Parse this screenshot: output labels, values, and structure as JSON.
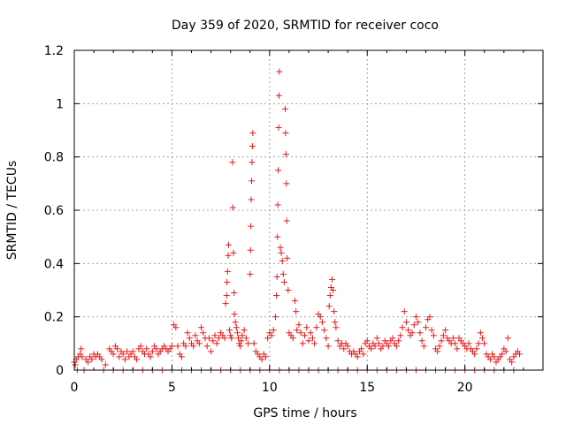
{
  "chart_data": {
    "type": "scatter",
    "title": "Day 359 of 2020, SRMTID for receiver coco",
    "xlabel": "GPS time / hours",
    "ylabel": "SRMTID / TECUs",
    "xlim": [
      0,
      24
    ],
    "ylim": [
      0,
      1.2
    ],
    "xticks": [
      0,
      5,
      10,
      15,
      20
    ],
    "xtick_labels": [
      "0",
      "5",
      "10",
      "15",
      "20"
    ],
    "yticks": [
      0,
      0.2,
      0.4,
      0.6,
      0.8,
      1.0,
      1.2
    ],
    "ytick_labels": [
      "0",
      "0.2",
      "0.4",
      "0.6",
      "0.8",
      "1",
      "1.2"
    ],
    "grid": true,
    "marker": "+",
    "marker_color": "#e41a1c",
    "series": [
      {
        "name": "SRMTID",
        "points": [
          [
            0.0,
            0.03
          ],
          [
            0.05,
            0.02
          ],
          [
            0.1,
            0.04
          ],
          [
            0.2,
            0.05
          ],
          [
            0.3,
            0.06
          ],
          [
            0.35,
            0.08
          ],
          [
            0.4,
            0.05
          ],
          [
            0.6,
            0.04
          ],
          [
            0.7,
            0.03
          ],
          [
            0.8,
            0.05
          ],
          [
            0.9,
            0.04
          ],
          [
            1.0,
            0.06
          ],
          [
            1.1,
            0.05
          ],
          [
            1.2,
            0.06
          ],
          [
            1.3,
            0.05
          ],
          [
            1.4,
            0.04
          ],
          [
            1.6,
            0.02
          ],
          [
            1.8,
            0.08
          ],
          [
            1.9,
            0.07
          ],
          [
            2.0,
            0.06
          ],
          [
            2.1,
            0.09
          ],
          [
            2.2,
            0.08
          ],
          [
            2.3,
            0.05
          ],
          [
            2.4,
            0.07
          ],
          [
            2.5,
            0.06
          ],
          [
            2.6,
            0.04
          ],
          [
            2.7,
            0.07
          ],
          [
            2.8,
            0.05
          ],
          [
            2.9,
            0.06
          ],
          [
            3.0,
            0.07
          ],
          [
            3.1,
            0.05
          ],
          [
            3.2,
            0.04
          ],
          [
            3.3,
            0.08
          ],
          [
            3.4,
            0.09
          ],
          [
            3.5,
            0.07
          ],
          [
            3.6,
            0.06
          ],
          [
            3.7,
            0.08
          ],
          [
            3.8,
            0.06
          ],
          [
            3.9,
            0.05
          ],
          [
            4.0,
            0.07
          ],
          [
            4.1,
            0.09
          ],
          [
            4.2,
            0.08
          ],
          [
            4.3,
            0.06
          ],
          [
            4.4,
            0.07
          ],
          [
            4.5,
            0.08
          ],
          [
            4.6,
            0.09
          ],
          [
            4.7,
            0.08
          ],
          [
            4.8,
            0.07
          ],
          [
            4.9,
            0.08
          ],
          [
            5.0,
            0.09
          ],
          [
            5.1,
            0.17
          ],
          [
            5.2,
            0.16
          ],
          [
            5.3,
            0.09
          ],
          [
            5.4,
            0.06
          ],
          [
            5.5,
            0.05
          ],
          [
            5.6,
            0.1
          ],
          [
            5.7,
            0.09
          ],
          [
            5.8,
            0.14
          ],
          [
            5.9,
            0.12
          ],
          [
            6.0,
            0.1
          ],
          [
            6.1,
            0.09
          ],
          [
            6.2,
            0.13
          ],
          [
            6.3,
            0.11
          ],
          [
            6.4,
            0.1
          ],
          [
            6.5,
            0.16
          ],
          [
            6.6,
            0.14
          ],
          [
            6.7,
            0.12
          ],
          [
            6.8,
            0.09
          ],
          [
            6.9,
            0.12
          ],
          [
            7.0,
            0.07
          ],
          [
            7.1,
            0.11
          ],
          [
            7.2,
            0.13
          ],
          [
            7.3,
            0.1
          ],
          [
            7.4,
            0.12
          ],
          [
            7.5,
            0.14
          ],
          [
            7.6,
            0.13
          ],
          [
            7.7,
            0.12
          ],
          [
            7.75,
            0.25
          ],
          [
            7.8,
            0.28
          ],
          [
            7.82,
            0.33
          ],
          [
            7.85,
            0.37
          ],
          [
            7.88,
            0.43
          ],
          [
            7.9,
            0.47
          ],
          [
            7.95,
            0.15
          ],
          [
            8.0,
            0.13
          ],
          [
            8.05,
            0.12
          ],
          [
            8.1,
            0.78
          ],
          [
            8.12,
            0.61
          ],
          [
            8.15,
            0.44
          ],
          [
            8.18,
            0.29
          ],
          [
            8.2,
            0.21
          ],
          [
            8.25,
            0.18
          ],
          [
            8.3,
            0.16
          ],
          [
            8.35,
            0.14
          ],
          [
            8.4,
            0.12
          ],
          [
            8.45,
            0.1
          ],
          [
            8.5,
            0.09
          ],
          [
            8.55,
            0.11
          ],
          [
            8.6,
            0.13
          ],
          [
            8.7,
            0.15
          ],
          [
            8.8,
            0.12
          ],
          [
            8.9,
            0.1
          ],
          [
            9.0,
            0.36
          ],
          [
            9.02,
            0.45
          ],
          [
            9.04,
            0.54
          ],
          [
            9.06,
            0.64
          ],
          [
            9.08,
            0.71
          ],
          [
            9.1,
            0.78
          ],
          [
            9.12,
            0.84
          ],
          [
            9.14,
            0.89
          ],
          [
            9.2,
            0.1
          ],
          [
            9.3,
            0.07
          ],
          [
            9.4,
            0.06
          ],
          [
            9.5,
            0.05
          ],
          [
            9.6,
            0.04
          ],
          [
            9.7,
            0.06
          ],
          [
            9.8,
            0.05
          ],
          [
            9.9,
            0.12
          ],
          [
            10.0,
            0.14
          ],
          [
            10.1,
            0.13
          ],
          [
            10.2,
            0.15
          ],
          [
            10.3,
            0.2
          ],
          [
            10.35,
            0.28
          ],
          [
            10.38,
            0.35
          ],
          [
            10.4,
            0.5
          ],
          [
            10.42,
            0.62
          ],
          [
            10.44,
            0.75
          ],
          [
            10.46,
            0.91
          ],
          [
            10.48,
            1.03
          ],
          [
            10.5,
            1.12
          ],
          [
            10.55,
            0.46
          ],
          [
            10.6,
            0.44
          ],
          [
            10.65,
            0.41
          ],
          [
            10.7,
            0.36
          ],
          [
            10.75,
            0.33
          ],
          [
            10.8,
            0.98
          ],
          [
            10.82,
            0.89
          ],
          [
            10.84,
            0.81
          ],
          [
            10.86,
            0.7
          ],
          [
            10.88,
            0.56
          ],
          [
            10.9,
            0.42
          ],
          [
            10.95,
            0.3
          ],
          [
            11.0,
            0.14
          ],
          [
            11.1,
            0.13
          ],
          [
            11.2,
            0.12
          ],
          [
            11.3,
            0.26
          ],
          [
            11.35,
            0.22
          ],
          [
            11.4,
            0.15
          ],
          [
            11.5,
            0.17
          ],
          [
            11.6,
            0.14
          ],
          [
            11.7,
            0.1
          ],
          [
            11.8,
            0.13
          ],
          [
            11.9,
            0.16
          ],
          [
            12.0,
            0.11
          ],
          [
            12.1,
            0.14
          ],
          [
            12.2,
            0.12
          ],
          [
            12.3,
            0.1
          ],
          [
            12.4,
            0.16
          ],
          [
            12.5,
            0.21
          ],
          [
            12.6,
            0.2
          ],
          [
            12.7,
            0.18
          ],
          [
            12.8,
            0.15
          ],
          [
            12.9,
            0.12
          ],
          [
            13.0,
            0.09
          ],
          [
            13.05,
            0.24
          ],
          [
            13.1,
            0.28
          ],
          [
            13.15,
            0.31
          ],
          [
            13.2,
            0.34
          ],
          [
            13.25,
            0.3
          ],
          [
            13.3,
            0.22
          ],
          [
            13.35,
            0.18
          ],
          [
            13.4,
            0.16
          ],
          [
            13.5,
            0.11
          ],
          [
            13.6,
            0.09
          ],
          [
            13.7,
            0.1
          ],
          [
            13.8,
            0.08
          ],
          [
            13.9,
            0.1
          ],
          [
            14.0,
            0.09
          ],
          [
            14.1,
            0.07
          ],
          [
            14.2,
            0.06
          ],
          [
            14.3,
            0.07
          ],
          [
            14.4,
            0.06
          ],
          [
            14.5,
            0.05
          ],
          [
            14.6,
            0.07
          ],
          [
            14.7,
            0.08
          ],
          [
            14.8,
            0.06
          ],
          [
            14.9,
            0.1
          ],
          [
            15.0,
            0.11
          ],
          [
            15.1,
            0.09
          ],
          [
            15.2,
            0.08
          ],
          [
            15.3,
            0.1
          ],
          [
            15.4,
            0.09
          ],
          [
            15.5,
            0.12
          ],
          [
            15.6,
            0.1
          ],
          [
            15.7,
            0.08
          ],
          [
            15.8,
            0.09
          ],
          [
            15.9,
            0.11
          ],
          [
            16.0,
            0.1
          ],
          [
            16.1,
            0.09
          ],
          [
            16.2,
            0.11
          ],
          [
            16.3,
            0.12
          ],
          [
            16.4,
            0.1
          ],
          [
            16.5,
            0.09
          ],
          [
            16.6,
            0.11
          ],
          [
            16.7,
            0.13
          ],
          [
            16.8,
            0.16
          ],
          [
            16.9,
            0.22
          ],
          [
            17.0,
            0.18
          ],
          [
            17.1,
            0.15
          ],
          [
            17.2,
            0.13
          ],
          [
            17.3,
            0.14
          ],
          [
            17.4,
            0.17
          ],
          [
            17.5,
            0.2
          ],
          [
            17.6,
            0.18
          ],
          [
            17.7,
            0.14
          ],
          [
            17.8,
            0.11
          ],
          [
            17.9,
            0.09
          ],
          [
            18.0,
            0.16
          ],
          [
            18.1,
            0.19
          ],
          [
            18.2,
            0.2
          ],
          [
            18.3,
            0.15
          ],
          [
            18.4,
            0.13
          ],
          [
            18.5,
            0.08
          ],
          [
            18.6,
            0.07
          ],
          [
            18.7,
            0.09
          ],
          [
            18.8,
            0.11
          ],
          [
            18.9,
            0.13
          ],
          [
            19.0,
            0.15
          ],
          [
            19.1,
            0.12
          ],
          [
            19.2,
            0.11
          ],
          [
            19.3,
            0.1
          ],
          [
            19.4,
            0.12
          ],
          [
            19.5,
            0.1
          ],
          [
            19.6,
            0.08
          ],
          [
            19.7,
            0.12
          ],
          [
            19.8,
            0.11
          ],
          [
            19.9,
            0.1
          ],
          [
            20.0,
            0.09
          ],
          [
            20.1,
            0.08
          ],
          [
            20.2,
            0.1
          ],
          [
            20.3,
            0.08
          ],
          [
            20.4,
            0.07
          ],
          [
            20.5,
            0.06
          ],
          [
            20.6,
            0.08
          ],
          [
            20.7,
            0.1
          ],
          [
            20.8,
            0.14
          ],
          [
            20.9,
            0.12
          ],
          [
            21.0,
            0.1
          ],
          [
            21.1,
            0.06
          ],
          [
            21.2,
            0.05
          ],
          [
            21.3,
            0.04
          ],
          [
            21.4,
            0.06
          ],
          [
            21.5,
            0.05
          ],
          [
            21.6,
            0.03
          ],
          [
            21.7,
            0.04
          ],
          [
            21.8,
            0.05
          ],
          [
            21.9,
            0.06
          ],
          [
            22.0,
            0.08
          ],
          [
            22.1,
            0.07
          ],
          [
            22.2,
            0.12
          ],
          [
            22.3,
            0.04
          ],
          [
            22.4,
            0.03
          ],
          [
            22.5,
            0.05
          ],
          [
            22.6,
            0.06
          ],
          [
            22.7,
            0.07
          ],
          [
            22.8,
            0.06
          ],
          [
            0.15,
            0.0
          ],
          [
            0.5,
            0.0
          ],
          [
            1.5,
            0.0
          ],
          [
            2.0,
            0.0
          ],
          [
            2.5,
            0.0
          ],
          [
            3.0,
            0.0
          ],
          [
            3.5,
            0.0
          ],
          [
            4.0,
            0.0
          ],
          [
            4.5,
            0.0
          ],
          [
            5.0,
            0.0
          ],
          [
            5.5,
            0.0
          ],
          [
            6.0,
            0.0
          ],
          [
            6.5,
            0.0
          ],
          [
            7.0,
            0.0
          ],
          [
            7.5,
            0.0
          ],
          [
            8.0,
            0.0
          ],
          [
            8.5,
            0.0
          ],
          [
            9.0,
            0.0
          ],
          [
            9.5,
            0.0
          ],
          [
            10.0,
            0.0
          ],
          [
            10.5,
            0.0
          ],
          [
            11.0,
            0.0
          ],
          [
            11.5,
            0.0
          ],
          [
            12.0,
            0.0
          ],
          [
            12.5,
            0.0
          ],
          [
            13.0,
            0.0
          ],
          [
            13.5,
            0.0
          ],
          [
            14.0,
            0.0
          ],
          [
            14.5,
            0.0
          ],
          [
            15.0,
            0.0
          ],
          [
            15.5,
            0.0
          ],
          [
            16.0,
            0.0
          ],
          [
            16.5,
            0.0
          ],
          [
            17.0,
            0.0
          ],
          [
            17.5,
            0.0
          ],
          [
            18.0,
            0.0
          ],
          [
            18.5,
            0.0
          ],
          [
            19.0,
            0.0
          ],
          [
            19.5,
            0.0
          ],
          [
            20.0,
            0.0
          ],
          [
            20.5,
            0.0
          ],
          [
            21.0,
            0.0
          ],
          [
            21.5,
            0.0
          ],
          [
            22.0,
            0.0
          ],
          [
            22.5,
            0.0
          ]
        ]
      }
    ]
  }
}
